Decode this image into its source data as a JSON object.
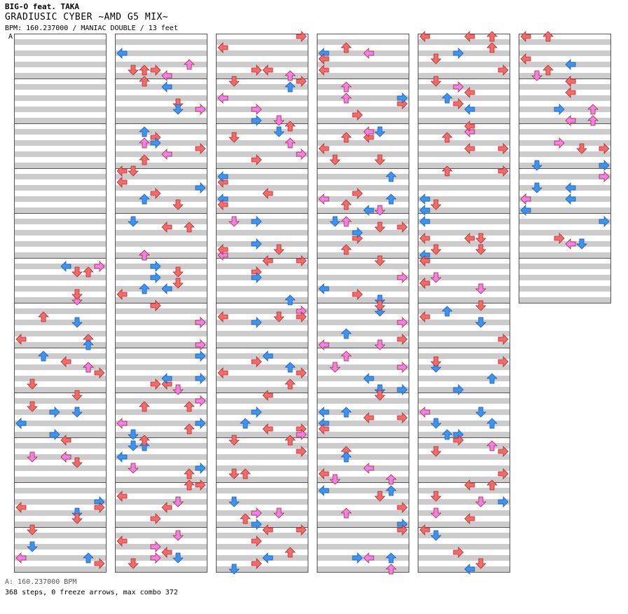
{
  "header": {
    "artist": "BIG-O feat. TAKA",
    "title": "GRADIUSIC CYBER ~AMD G5 MIX~",
    "chart_info": "BPM: 160.237000 / MANIAC DOUBLE / 13 feet",
    "section_marker": "A"
  },
  "footer": {
    "bpm_line": "A: 160.237000 BPM",
    "stats_line": "368 steps, 0 freeze arrows, max combo 372"
  },
  "colors": {
    "red_note": "#f36a6a",
    "blue_note": "#3d94f0",
    "pink_note": "#ec80ec",
    "stripe": "#cccccc",
    "column_bg": "#ffffff",
    "border": "#555555"
  },
  "chart_data": {
    "type": "step-chart",
    "mode": "MANIAC DOUBLE",
    "difficulty_feet": 13,
    "bpm": 160.237,
    "panels": [
      "L",
      "D",
      "U",
      "R",
      "L",
      "D",
      "U",
      "R"
    ],
    "columns": 6,
    "measures_per_column": 12,
    "total_measures": 66,
    "steps": 368,
    "freeze_arrows": 0,
    "max_combo": 372,
    "note_color_key": {
      "red": "4th",
      "blue": "8th",
      "pink": "16th"
    }
  }
}
